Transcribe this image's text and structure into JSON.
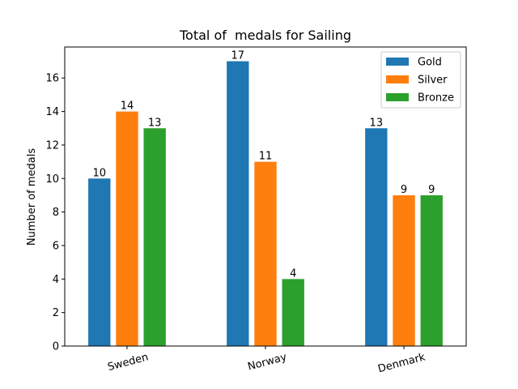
{
  "chart_data": {
    "type": "bar",
    "title": "Total of  medals for Sailing",
    "xlabel": "",
    "ylabel": "Number of medals",
    "categories": [
      "Sweden",
      "Norway",
      "Denmark"
    ],
    "series": [
      {
        "name": "Gold",
        "values": [
          10,
          17,
          13
        ],
        "color": "#1f77b4"
      },
      {
        "name": "Silver",
        "values": [
          14,
          11,
          9
        ],
        "color": "#ff7f0e"
      },
      {
        "name": "Bronze",
        "values": [
          13,
          4,
          9
        ],
        "color": "#2ca02c"
      }
    ],
    "ylim": [
      0,
      17.85
    ],
    "yticks": [
      0,
      2,
      4,
      6,
      8,
      10,
      12,
      14,
      16
    ],
    "grid": false,
    "legend_position": "top-right",
    "xtick_rotation": "rotated"
  }
}
